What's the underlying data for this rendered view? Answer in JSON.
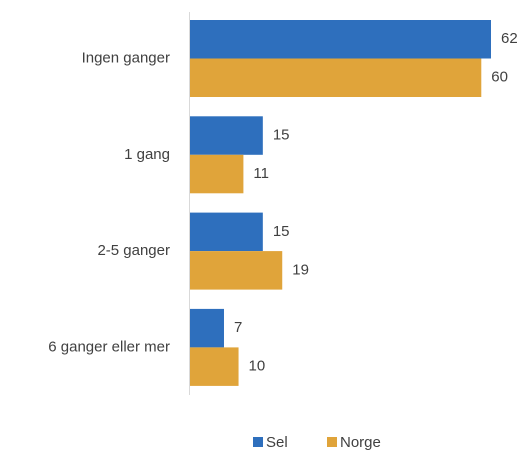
{
  "chart_data": {
    "type": "bar",
    "orientation": "horizontal",
    "categories": [
      "Ingen ganger",
      "1 gang",
      "2-5 ganger",
      "6 ganger eller mer"
    ],
    "series": [
      {
        "name": "Sel",
        "color": "#2e6fbd",
        "values": [
          62,
          15,
          15,
          7
        ]
      },
      {
        "name": "Norge",
        "color": "#e0a43a",
        "values": [
          60,
          11,
          19,
          10
        ]
      }
    ],
    "legend": "bottom"
  }
}
